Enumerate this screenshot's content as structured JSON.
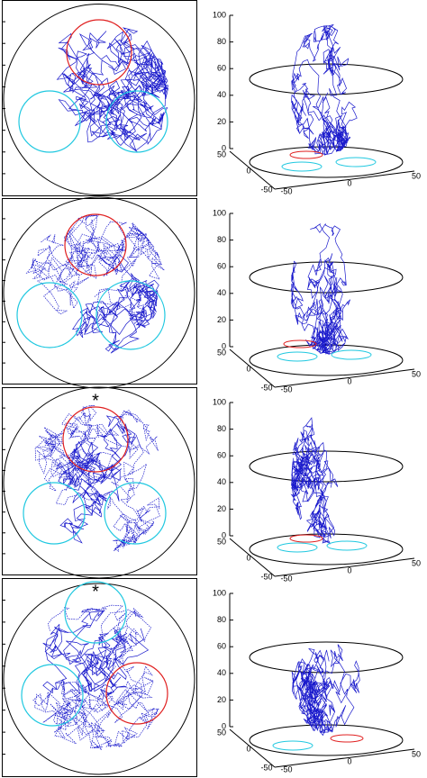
{
  "panels": [
    {
      "z_ticks": [
        100,
        80,
        60,
        40,
        20,
        0
      ],
      "x_ticks": [
        50,
        0,
        -50
      ],
      "y_ticks": [
        -50,
        0,
        50
      ]
    },
    {
      "z_ticks": [
        100,
        80,
        60,
        40,
        20,
        0
      ],
      "x_ticks": [
        50,
        0,
        -50
      ],
      "y_ticks": [
        -50,
        0,
        50
      ]
    },
    {
      "marker": "*",
      "z_ticks": [
        100,
        80,
        60,
        40,
        20,
        0
      ],
      "x_ticks": [
        50,
        0,
        -50
      ],
      "y_ticks": [
        -50,
        0,
        50
      ]
    },
    {
      "marker": "*",
      "z_ticks": [
        100,
        80,
        60,
        40,
        20,
        0
      ],
      "x_ticks": [
        50,
        0,
        -50
      ],
      "y_ticks": [
        -50,
        0,
        50
      ]
    }
  ]
}
